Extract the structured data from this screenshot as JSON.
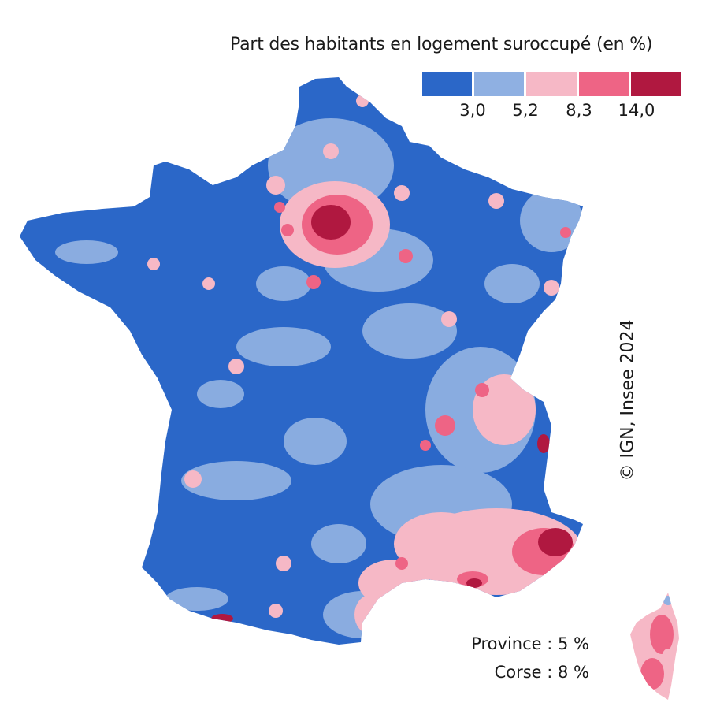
{
  "legend": {
    "title": "Part des habitants en logement suroccupé (en %)",
    "colors": [
      "#2b67c8",
      "#8fb0e2",
      "#f6b8c6",
      "#ee6485",
      "#b01840"
    ],
    "ticks": [
      "3,0",
      "5,2",
      "8,3",
      "14,0"
    ]
  },
  "copyright": "© IGN, Insee 2024",
  "stats": {
    "province": "Province : 5 %",
    "corse": "Corse : 8 %"
  }
}
